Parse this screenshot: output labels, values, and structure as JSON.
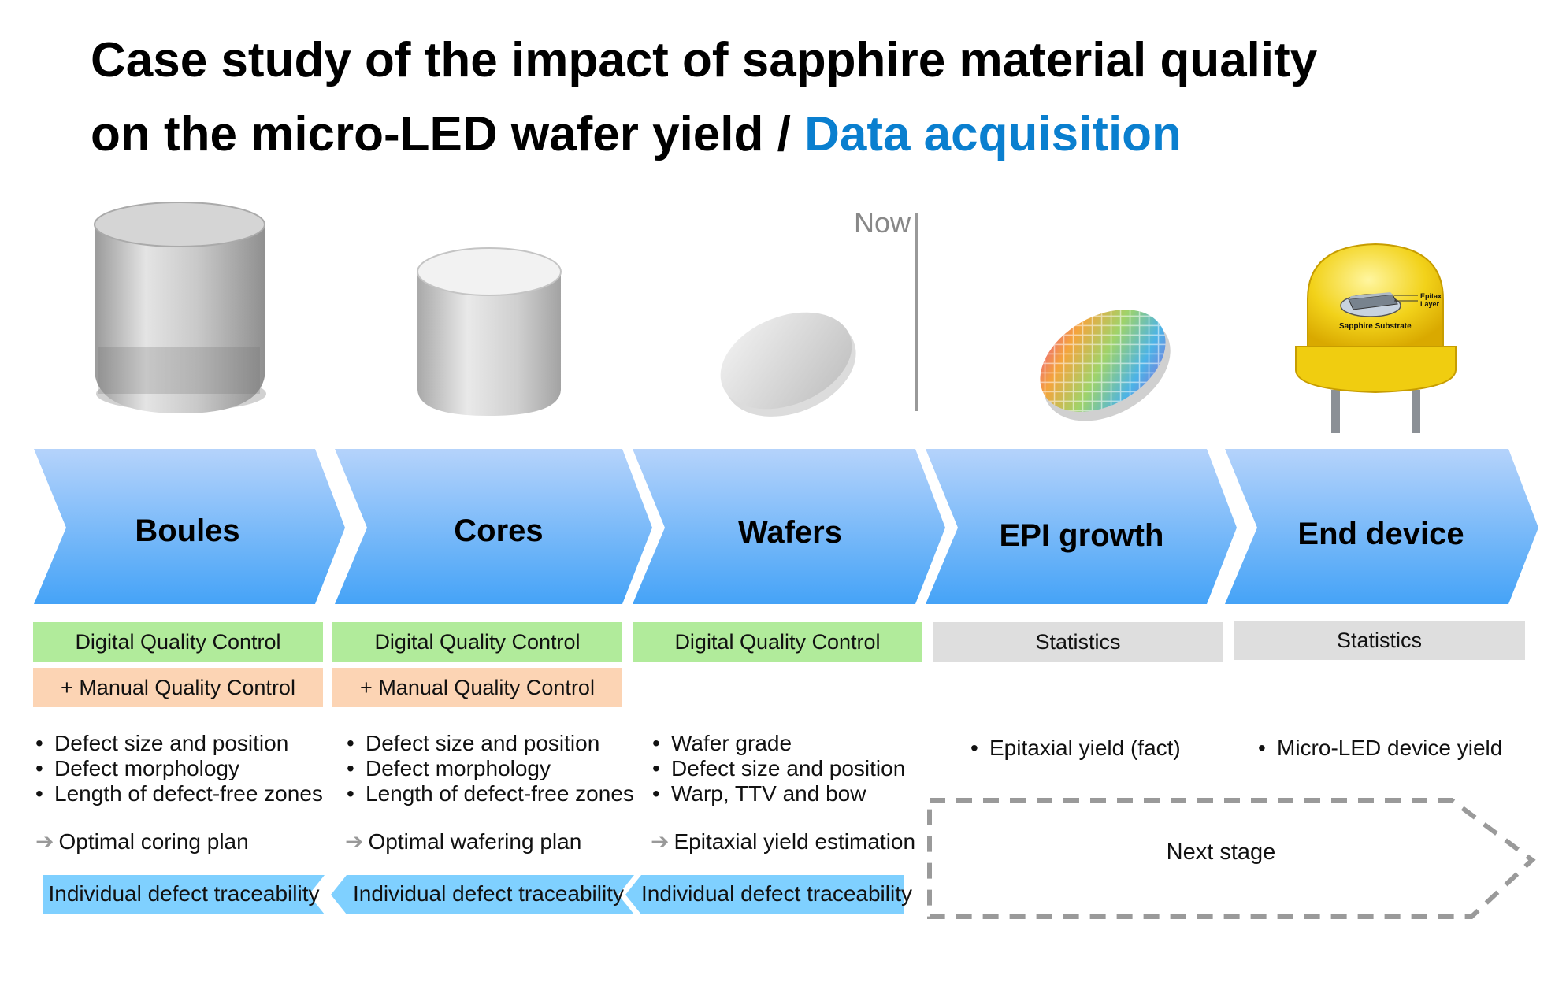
{
  "title": {
    "line1": "Case study of the impact of sapphire material quality",
    "line2": "on the micro-LED wafer yield / ",
    "accent": "Data acquisition"
  },
  "now_label": "Now",
  "led_labels": {
    "epitaxy": "Epitax Layer",
    "substrate": "Sapphire Substrate"
  },
  "stages": [
    {
      "name": "Boules"
    },
    {
      "name": "Cores"
    },
    {
      "name": "Wafers"
    },
    {
      "name": "EPI growth"
    },
    {
      "name": "End device"
    }
  ],
  "control": {
    "digital": "Digital Quality Control",
    "manual": "+ Manual Quality Control",
    "statistics": "Statistics"
  },
  "bullets": {
    "boules": [
      "Defect size and position",
      "Defect morphology",
      "Length of defect-free zones"
    ],
    "cores": [
      "Defect size and position",
      "Defect morphology",
      "Length of defect-free zones"
    ],
    "wafers": [
      "Wafer grade",
      "Defect size and position",
      "Warp, TTV and bow"
    ],
    "epi": [
      "Epitaxial yield (fact)"
    ],
    "device": [
      "Micro-LED device yield"
    ]
  },
  "outcomes": {
    "boules": "Optimal coring plan",
    "cores": "Optimal wafering plan",
    "wafers": "Epitaxial yield estimation"
  },
  "arrow_glyph": "➔",
  "traceability": "Individual defect traceability",
  "next_stage": "Next stage"
}
